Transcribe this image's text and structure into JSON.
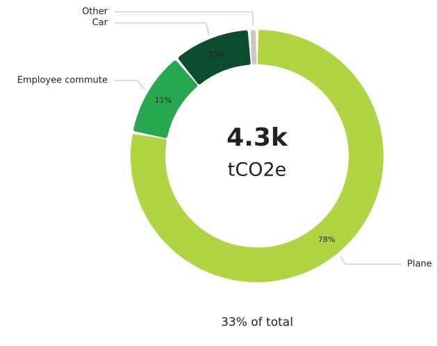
{
  "chart_data": {
    "type": "donut",
    "categories": [
      "Plane",
      "Employee commute",
      "Car",
      "Other"
    ],
    "values": [
      78,
      11,
      10,
      1
    ],
    "value_labels": [
      "78%",
      "11%",
      "10%",
      null
    ],
    "colors": [
      "#b1d443",
      "#27a750",
      "#0b4d2f",
      "#c8c8c8"
    ],
    "center_value": "4.3k",
    "center_unit": "tCO2e",
    "footer": "33% of total"
  }
}
